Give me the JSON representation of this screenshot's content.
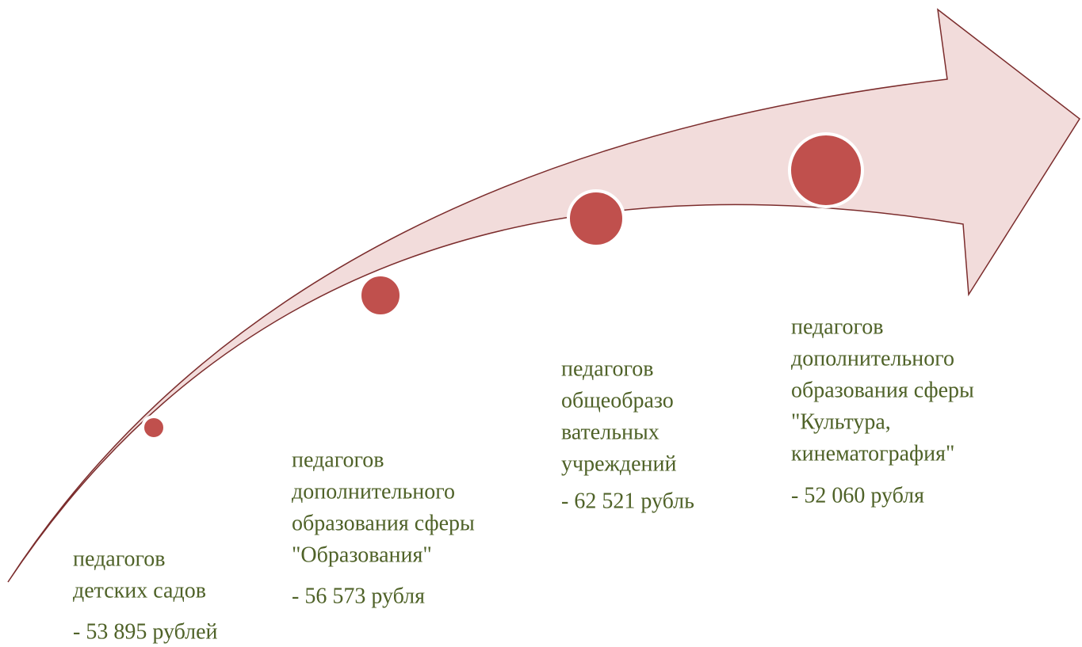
{
  "items": [
    {
      "lines": [
        "педагогов",
        "детских садов"
      ],
      "value": "- 53 895 рублей"
    },
    {
      "lines": [
        "педагогов",
        "дополнительного",
        "образования сферы",
        "\"Образования\""
      ],
      "value": "- 56 573 рубля"
    },
    {
      "lines": [
        "педагогов",
        "общеобразо",
        "вательных",
        "учреждений"
      ],
      "value": "- 62 521 рубль"
    },
    {
      "lines": [
        "педагогов",
        "дополнительного",
        "образования сферы",
        "\"Культура,",
        "кинематография\""
      ],
      "value": "- 52 060 рубля"
    }
  ]
}
